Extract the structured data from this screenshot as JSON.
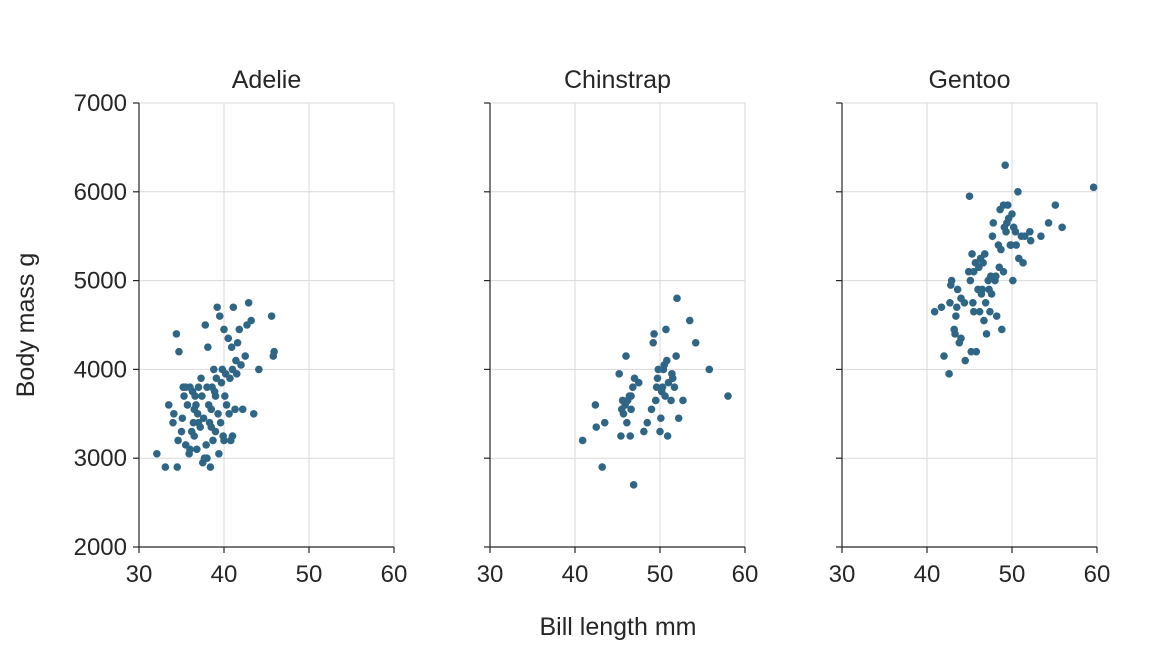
{
  "chart_data": {
    "type": "scatter",
    "xlabel": "Bill length mm",
    "ylabel": "Body mass g",
    "xlim": [
      30,
      60
    ],
    "ylim": [
      2000,
      7000
    ],
    "xticks": [
      30,
      40,
      50,
      60
    ],
    "yticks": [
      2000,
      3000,
      4000,
      5000,
      6000,
      7000
    ],
    "grid": true,
    "marker_color": "#2f6685",
    "panels": [
      {
        "title": "Adelie",
        "points": [
          [
            32.1,
            3050
          ],
          [
            33.1,
            2900
          ],
          [
            33.5,
            3600
          ],
          [
            34.0,
            3400
          ],
          [
            34.1,
            3500
          ],
          [
            34.4,
            4400
          ],
          [
            34.5,
            2900
          ],
          [
            34.6,
            3200
          ],
          [
            34.7,
            4200
          ],
          [
            35.0,
            3300
          ],
          [
            35.1,
            3450
          ],
          [
            35.2,
            3800
          ],
          [
            35.3,
            3700
          ],
          [
            35.5,
            3150
          ],
          [
            35.7,
            3600
          ],
          [
            35.9,
            3050
          ],
          [
            36.0,
            3800
          ],
          [
            36.2,
            3300
          ],
          [
            36.3,
            3750
          ],
          [
            36.4,
            3400
          ],
          [
            36.5,
            3250
          ],
          [
            36.6,
            3700
          ],
          [
            36.7,
            3600
          ],
          [
            36.8,
            3100
          ],
          [
            36.9,
            3500
          ],
          [
            37.0,
            3800
          ],
          [
            37.2,
            3350
          ],
          [
            37.3,
            3900
          ],
          [
            37.4,
            3700
          ],
          [
            37.5,
            2950
          ],
          [
            37.6,
            3450
          ],
          [
            37.7,
            3000
          ],
          [
            37.8,
            4500
          ],
          [
            37.9,
            3150
          ],
          [
            38.0,
            3800
          ],
          [
            38.1,
            4250
          ],
          [
            38.2,
            3600
          ],
          [
            38.3,
            3400
          ],
          [
            38.4,
            2900
          ],
          [
            38.5,
            3550
          ],
          [
            38.6,
            3800
          ],
          [
            38.7,
            3200
          ],
          [
            38.8,
            4000
          ],
          [
            38.9,
            3750
          ],
          [
            39.0,
            3300
          ],
          [
            39.1,
            3900
          ],
          [
            39.2,
            4700
          ],
          [
            39.3,
            3500
          ],
          [
            39.4,
            3050
          ],
          [
            39.5,
            4600
          ],
          [
            39.6,
            3400
          ],
          [
            39.7,
            3850
          ],
          [
            39.8,
            4000
          ],
          [
            39.9,
            3250
          ],
          [
            40.0,
            4450
          ],
          [
            40.1,
            3700
          ],
          [
            40.2,
            3950
          ],
          [
            40.3,
            3600
          ],
          [
            40.5,
            4350
          ],
          [
            40.6,
            3500
          ],
          [
            40.7,
            3900
          ],
          [
            40.8,
            3200
          ],
          [
            40.9,
            4250
          ],
          [
            41.0,
            4000
          ],
          [
            41.1,
            4700
          ],
          [
            41.3,
            3550
          ],
          [
            41.4,
            4100
          ],
          [
            41.5,
            3950
          ],
          [
            41.6,
            4300
          ],
          [
            41.8,
            4450
          ],
          [
            42.0,
            4050
          ],
          [
            42.2,
            3550
          ],
          [
            42.5,
            4150
          ],
          [
            42.7,
            4500
          ],
          [
            42.9,
            4750
          ],
          [
            43.2,
            4550
          ],
          [
            43.5,
            3500
          ],
          [
            44.1,
            4000
          ],
          [
            45.6,
            4600
          ],
          [
            45.8,
            4150
          ],
          [
            45.9,
            4200
          ],
          [
            36.0,
            3100
          ],
          [
            37.0,
            3400
          ],
          [
            38.0,
            3000
          ],
          [
            39.0,
            3700
          ],
          [
            40.0,
            3200
          ],
          [
            41.0,
            3250
          ],
          [
            35.5,
            3800
          ],
          [
            36.5,
            3550
          ],
          [
            38.5,
            3350
          ]
        ]
      },
      {
        "title": "Chinstrap",
        "points": [
          [
            40.9,
            3200
          ],
          [
            42.4,
            3600
          ],
          [
            42.5,
            3350
          ],
          [
            43.2,
            2900
          ],
          [
            43.5,
            3400
          ],
          [
            45.2,
            3950
          ],
          [
            45.4,
            3250
          ],
          [
            45.5,
            3550
          ],
          [
            45.6,
            3650
          ],
          [
            45.7,
            3500
          ],
          [
            45.9,
            3600
          ],
          [
            46.0,
            4150
          ],
          [
            46.1,
            3400
          ],
          [
            46.2,
            3650
          ],
          [
            46.4,
            3700
          ],
          [
            46.5,
            3250
          ],
          [
            46.6,
            3700
          ],
          [
            46.8,
            3800
          ],
          [
            46.9,
            2700
          ],
          [
            47.0,
            3900
          ],
          [
            47.5,
            3850
          ],
          [
            48.1,
            3300
          ],
          [
            48.5,
            3400
          ],
          [
            49.0,
            3550
          ],
          [
            49.2,
            4300
          ],
          [
            49.3,
            4400
          ],
          [
            49.5,
            3650
          ],
          [
            49.6,
            3800
          ],
          [
            49.7,
            3900
          ],
          [
            49.8,
            4000
          ],
          [
            50.0,
            3300
          ],
          [
            50.1,
            3450
          ],
          [
            50.2,
            3750
          ],
          [
            50.3,
            3800
          ],
          [
            50.4,
            4000
          ],
          [
            50.5,
            4050
          ],
          [
            50.6,
            3700
          ],
          [
            50.7,
            4450
          ],
          [
            50.8,
            4100
          ],
          [
            50.9,
            3250
          ],
          [
            51.0,
            3850
          ],
          [
            51.3,
            3650
          ],
          [
            51.4,
            3950
          ],
          [
            51.5,
            3900
          ],
          [
            51.7,
            3800
          ],
          [
            51.9,
            4150
          ],
          [
            52.0,
            4800
          ],
          [
            52.2,
            3450
          ],
          [
            52.7,
            3650
          ],
          [
            53.5,
            4550
          ],
          [
            54.2,
            4300
          ],
          [
            55.8,
            4000
          ],
          [
            58.0,
            3700
          ],
          [
            46.6,
            3550
          ]
        ]
      },
      {
        "title": "Gentoo",
        "points": [
          [
            40.9,
            4650
          ],
          [
            41.7,
            4700
          ],
          [
            42.0,
            4150
          ],
          [
            42.6,
            3950
          ],
          [
            42.7,
            4750
          ],
          [
            42.8,
            4950
          ],
          [
            42.9,
            5000
          ],
          [
            43.2,
            4450
          ],
          [
            43.3,
            4400
          ],
          [
            43.4,
            4600
          ],
          [
            43.5,
            4700
          ],
          [
            43.6,
            4900
          ],
          [
            43.8,
            4300
          ],
          [
            44.0,
            4350
          ],
          [
            44.4,
            4750
          ],
          [
            44.5,
            4100
          ],
          [
            44.9,
            5100
          ],
          [
            45.0,
            5950
          ],
          [
            45.1,
            5000
          ],
          [
            45.2,
            4200
          ],
          [
            45.3,
            5300
          ],
          [
            45.4,
            4750
          ],
          [
            45.5,
            4650
          ],
          [
            45.7,
            5200
          ],
          [
            45.8,
            4200
          ],
          [
            46.1,
            5150
          ],
          [
            46.2,
            4650
          ],
          [
            46.3,
            5250
          ],
          [
            46.4,
            4850
          ],
          [
            46.5,
            4900
          ],
          [
            46.6,
            5200
          ],
          [
            46.7,
            4550
          ],
          [
            46.8,
            5300
          ],
          [
            46.9,
            4750
          ],
          [
            47.2,
            5000
          ],
          [
            47.3,
            4900
          ],
          [
            47.4,
            4650
          ],
          [
            47.5,
            5050
          ],
          [
            47.6,
            4850
          ],
          [
            47.7,
            5500
          ],
          [
            47.8,
            5650
          ],
          [
            48.1,
            5050
          ],
          [
            48.2,
            4600
          ],
          [
            48.4,
            5400
          ],
          [
            48.5,
            5150
          ],
          [
            48.6,
            5800
          ],
          [
            48.7,
            5350
          ],
          [
            48.8,
            4450
          ],
          [
            49.0,
            5100
          ],
          [
            49.1,
            5600
          ],
          [
            49.2,
            6300
          ],
          [
            49.3,
            5550
          ],
          [
            49.4,
            5650
          ],
          [
            49.5,
            5850
          ],
          [
            49.6,
            5700
          ],
          [
            49.8,
            5400
          ],
          [
            49.9,
            5400
          ],
          [
            50.0,
            5750
          ],
          [
            50.1,
            5000
          ],
          [
            50.2,
            5600
          ],
          [
            50.4,
            5550
          ],
          [
            50.5,
            5400
          ],
          [
            50.7,
            6000
          ],
          [
            50.8,
            5250
          ],
          [
            51.1,
            5500
          ],
          [
            51.3,
            5200
          ],
          [
            51.5,
            5500
          ],
          [
            52.1,
            5550
          ],
          [
            52.2,
            5450
          ],
          [
            53.4,
            5500
          ],
          [
            54.3,
            5650
          ],
          [
            55.1,
            5850
          ],
          [
            55.9,
            5600
          ],
          [
            59.6,
            6050
          ],
          [
            46.0,
            4900
          ],
          [
            47.0,
            4400
          ],
          [
            48.0,
            5000
          ],
          [
            49.0,
            5850
          ],
          [
            44.0,
            4800
          ],
          [
            45.5,
            5100
          ]
        ]
      }
    ]
  }
}
